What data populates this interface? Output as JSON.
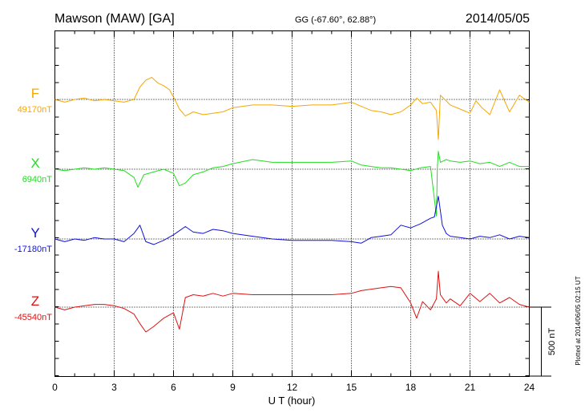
{
  "header": {
    "station": "Mawson (MAW)  [GA]",
    "coords": "GG (-67.60°,  62.88°)",
    "date": "2014/05/05"
  },
  "footer": {
    "plotted_note": "Plotted at 2014/06/05 02:15 UT"
  },
  "chart_data": {
    "type": "line",
    "title": "Mawson (MAW)  [GA]",
    "xlabel": "U T (hour)",
    "ylabel": "",
    "xlim": [
      0,
      24
    ],
    "xticks": [
      0,
      3,
      6,
      9,
      12,
      15,
      18,
      21,
      24
    ],
    "grid": true,
    "scale_bar": {
      "label": "500 nT",
      "value_nT": 500
    },
    "series": [
      {
        "name": "F",
        "baseline_label": "49170nT",
        "baseline_nT": 49170,
        "color": "#f5a800",
        "x": [
          0,
          0.5,
          1,
          1.5,
          2,
          2.5,
          3,
          3.5,
          4,
          4.3,
          4.6,
          4.9,
          5.2,
          5.5,
          5.8,
          6.1,
          6.3,
          6.6,
          7,
          7.5,
          8,
          8.5,
          9,
          9.5,
          10,
          11,
          12,
          13,
          14,
          14.5,
          15,
          15.5,
          16,
          16.5,
          17,
          17.5,
          18,
          18.3,
          18.6,
          19,
          19.3,
          19.4,
          19.5,
          19.8,
          20,
          20.5,
          21,
          21.3,
          21.6,
          22,
          22.5,
          23,
          23.5,
          24
        ],
        "values": [
          49170,
          49150,
          49170,
          49180,
          49160,
          49170,
          49160,
          49150,
          49170,
          49260,
          49310,
          49330,
          49290,
          49270,
          49240,
          49160,
          49100,
          49050,
          49080,
          49060,
          49070,
          49080,
          49110,
          49120,
          49130,
          49130,
          49120,
          49130,
          49130,
          49140,
          49150,
          49120,
          49090,
          49080,
          49060,
          49080,
          49130,
          49180,
          49140,
          49150,
          49090,
          48880,
          49200,
          49160,
          49130,
          49100,
          49070,
          49160,
          49110,
          49060,
          49240,
          49080,
          49200,
          49150
        ]
      },
      {
        "name": "X",
        "baseline_label": "6940nT",
        "baseline_nT": 6940,
        "color": "#22dd22",
        "x": [
          0,
          0.5,
          1,
          1.5,
          2,
          2.5,
          3,
          3.5,
          4,
          4.2,
          4.5,
          5,
          5.5,
          6,
          6.3,
          6.6,
          7,
          7.5,
          8,
          8.5,
          9,
          10,
          11,
          12,
          13,
          14,
          15,
          15.5,
          16,
          16.5,
          17,
          17.5,
          18,
          18.5,
          19,
          19.3,
          19.35,
          19.4,
          19.5,
          19.8,
          20,
          20.5,
          21,
          21.5,
          22,
          22.5,
          23,
          23.5,
          24
        ],
        "values": [
          6940,
          6930,
          6940,
          6950,
          6940,
          6950,
          6940,
          6930,
          6880,
          6810,
          6900,
          6920,
          6940,
          6910,
          6820,
          6840,
          6900,
          6920,
          6950,
          6960,
          6980,
          7010,
          6990,
          6990,
          6990,
          6990,
          7000,
          6970,
          6960,
          6950,
          6950,
          6940,
          6930,
          6950,
          6960,
          6600,
          6960,
          7070,
          6990,
          7010,
          7000,
          6990,
          7000,
          6980,
          6990,
          6960,
          6990,
          6960,
          6960
        ]
      },
      {
        "name": "Y",
        "baseline_label": "-17180nT",
        "baseline_nT": -17180,
        "color": "#1111dd",
        "x": [
          0,
          0.5,
          1,
          1.5,
          2,
          2.5,
          3,
          3.5,
          4,
          4.3,
          4.6,
          5,
          5.5,
          6,
          6.3,
          6.6,
          7,
          7.5,
          8,
          8.5,
          9,
          10,
          11,
          12,
          13,
          14,
          15,
          15.5,
          16,
          16.5,
          17,
          17.5,
          18,
          18.5,
          19,
          19.2,
          19.4,
          19.6,
          19.8,
          20,
          20.5,
          21,
          21.5,
          22,
          22.5,
          23,
          23.5,
          24
        ],
        "values": [
          -17180,
          -17200,
          -17180,
          -17190,
          -17170,
          -17180,
          -17180,
          -17200,
          -17140,
          -17080,
          -17200,
          -17220,
          -17190,
          -17150,
          -17120,
          -17090,
          -17130,
          -17140,
          -17110,
          -17120,
          -17140,
          -17160,
          -17180,
          -17190,
          -17190,
          -17190,
          -17200,
          -17210,
          -17170,
          -17160,
          -17150,
          -17080,
          -17100,
          -17070,
          -17030,
          -17020,
          -16870,
          -17080,
          -17140,
          -17160,
          -17170,
          -17180,
          -17160,
          -17170,
          -17150,
          -17180,
          -17160,
          -17170
        ]
      },
      {
        "name": "Z",
        "baseline_label": "-45540nT",
        "baseline_nT": -45540,
        "color": "#dd1111",
        "x": [
          0,
          0.5,
          1,
          1.5,
          2,
          2.5,
          3,
          3.5,
          4,
          4.3,
          4.6,
          5,
          5.5,
          6,
          6.3,
          6.6,
          7,
          7.5,
          8,
          8.5,
          9,
          10,
          11,
          12,
          13,
          14,
          15,
          15.5,
          16,
          16.5,
          17,
          17.5,
          18,
          18.3,
          18.6,
          19,
          19.3,
          19.4,
          19.5,
          19.8,
          20,
          20.5,
          21,
          21.5,
          22,
          22.5,
          23,
          23.5,
          24
        ],
        "values": [
          -45540,
          -45560,
          -45540,
          -45530,
          -45520,
          -45520,
          -45530,
          -45550,
          -45590,
          -45660,
          -45720,
          -45680,
          -45620,
          -45580,
          -45700,
          -45470,
          -45450,
          -45460,
          -45440,
          -45460,
          -45440,
          -45450,
          -45450,
          -45450,
          -45450,
          -45450,
          -45440,
          -45420,
          -45410,
          -45400,
          -45390,
          -45400,
          -45510,
          -45620,
          -45500,
          -45560,
          -45480,
          -45280,
          -45450,
          -45510,
          -45480,
          -45530,
          -45440,
          -45500,
          -45440,
          -45510,
          -45470,
          -45520,
          -45540
        ]
      }
    ]
  }
}
